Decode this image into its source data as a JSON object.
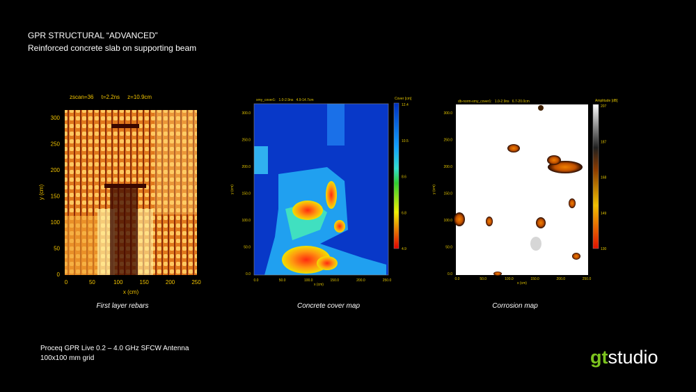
{
  "header": {
    "title": "GPR STRUCTURAL “ADVANCED”",
    "subtitle": "Reinforced concrete slab on supporting beam"
  },
  "panels": [
    {
      "plot_header": "zscan=36     t=2.2ns     z=10.9cm",
      "x_label": "x (cm)",
      "y_label": "y (cm)",
      "x_ticks": [
        "0",
        "50",
        "100",
        "150",
        "200",
        "250"
      ],
      "y_ticks": [
        "0",
        "50",
        "100",
        "150",
        "200",
        "250",
        "300"
      ],
      "caption": "First layer rebars"
    },
    {
      "plot_header": "xmy_cover1:   1.0-2.9ns   4.9-14.7cm",
      "x_label": "x (cm)",
      "y_label": "y (cm)",
      "x_ticks": [
        "0.0",
        "50.0",
        "100.0",
        "150.0",
        "200.0",
        "250.0"
      ],
      "y_ticks": [
        "0.0",
        "50.0",
        "100.0",
        "150.0",
        "200.0",
        "250.0",
        "300.0"
      ],
      "colorbar": {
        "title": "Cover [cm]",
        "ticks": [
          "12.4",
          "10.5",
          "8.6",
          "6.8",
          "4.9"
        ]
      },
      "caption": "Concrete cover map"
    },
    {
      "plot_header": "db-norm-xmy_cover1:   1.0-2.9ns   6.7-20.0cm",
      "x_label": "x (cm)",
      "y_label": "y (cm)",
      "x_ticks": [
        "0.0",
        "50.0",
        "100.0",
        "150.0",
        "200.0",
        "250.0"
      ],
      "y_ticks": [
        "0.0",
        "50.0",
        "100.0",
        "150.0",
        "200.0",
        "250.0",
        "300.0"
      ],
      "colorbar": {
        "title": "Amplitude [dB]",
        "ticks": [
          "207",
          "187",
          "168",
          "149",
          "130"
        ]
      },
      "caption": "Corrosion map"
    }
  ],
  "footer": {
    "lines": [
      "Proceq GPR Live 0.2 – 4.0 GHz SFCW Antenna",
      "100x100 mm grid"
    ]
  },
  "logo": {
    "part1": "gt",
    "part2": "studio"
  }
}
